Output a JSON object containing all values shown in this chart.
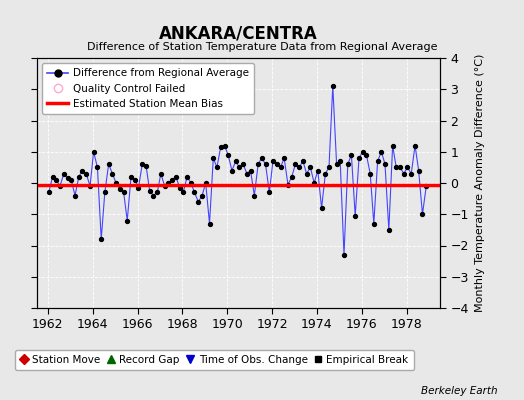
{
  "title": "ANKARA/CENTRA",
  "subtitle": "Difference of Station Temperature Data from Regional Average",
  "ylabel": "Monthly Temperature Anomaly Difference (°C)",
  "xlabel_years": [
    1962,
    1964,
    1966,
    1968,
    1970,
    1972,
    1974,
    1976,
    1978
  ],
  "xlim": [
    1961.5,
    1979.5
  ],
  "ylim": [
    -4,
    4
  ],
  "bias_value": -0.05,
  "background_color": "#e8e8e8",
  "plot_bg_color": "#e8e8e8",
  "line_color": "#4444ff",
  "bias_color": "#ff0000",
  "marker_color": "#000000",
  "berkeley_earth_label": "Berkeley Earth",
  "data_x": [
    1962.04,
    1962.21,
    1962.38,
    1962.54,
    1962.71,
    1962.88,
    1963.04,
    1963.21,
    1963.38,
    1963.54,
    1963.71,
    1963.88,
    1964.04,
    1964.21,
    1964.38,
    1964.54,
    1964.71,
    1964.88,
    1965.04,
    1965.21,
    1965.38,
    1965.54,
    1965.71,
    1965.88,
    1966.04,
    1966.21,
    1966.38,
    1966.54,
    1966.71,
    1966.88,
    1967.04,
    1967.21,
    1967.38,
    1967.54,
    1967.71,
    1967.88,
    1968.04,
    1968.21,
    1968.38,
    1968.54,
    1968.71,
    1968.88,
    1969.04,
    1969.21,
    1969.38,
    1969.54,
    1969.71,
    1969.88,
    1970.04,
    1970.21,
    1970.38,
    1970.54,
    1970.71,
    1970.88,
    1971.04,
    1971.21,
    1971.38,
    1971.54,
    1971.71,
    1971.88,
    1972.04,
    1972.21,
    1972.38,
    1972.54,
    1972.71,
    1972.88,
    1973.04,
    1973.21,
    1973.38,
    1973.54,
    1973.71,
    1973.88,
    1974.04,
    1974.21,
    1974.38,
    1974.54,
    1974.71,
    1974.88,
    1975.04,
    1975.21,
    1975.38,
    1975.54,
    1975.71,
    1975.88,
    1976.04,
    1976.21,
    1976.38,
    1976.54,
    1976.71,
    1976.88,
    1977.04,
    1977.21,
    1977.38,
    1977.54,
    1977.71,
    1977.88,
    1978.04,
    1978.21,
    1978.38,
    1978.54,
    1978.71,
    1978.88
  ],
  "data_y": [
    -0.3,
    0.2,
    0.1,
    -0.1,
    0.3,
    0.15,
    0.1,
    -0.4,
    0.2,
    0.4,
    0.3,
    -0.1,
    1.0,
    0.5,
    -1.8,
    -0.3,
    0.6,
    0.3,
    0.0,
    -0.2,
    -0.3,
    -1.2,
    0.2,
    0.1,
    -0.15,
    0.6,
    0.55,
    -0.25,
    -0.4,
    -0.3,
    0.3,
    -0.1,
    0.0,
    0.1,
    0.2,
    -0.15,
    -0.3,
    0.2,
    0.0,
    -0.3,
    -0.6,
    -0.4,
    0.0,
    -1.3,
    0.8,
    0.5,
    1.15,
    1.2,
    0.9,
    0.4,
    0.7,
    0.5,
    0.6,
    0.3,
    0.4,
    -0.4,
    0.6,
    0.8,
    0.6,
    -0.3,
    0.7,
    0.6,
    0.5,
    0.8,
    -0.05,
    0.2,
    0.6,
    0.5,
    0.7,
    0.3,
    0.5,
    0.0,
    0.4,
    -0.8,
    0.3,
    0.5,
    3.1,
    0.6,
    0.7,
    -2.3,
    0.6,
    0.9,
    -1.05,
    0.8,
    1.0,
    0.9,
    0.3,
    -1.3,
    0.7,
    1.0,
    0.6,
    -1.5,
    1.2,
    0.5,
    0.5,
    0.3,
    0.5,
    0.3,
    1.2,
    0.4,
    -1.0,
    -0.1
  ]
}
